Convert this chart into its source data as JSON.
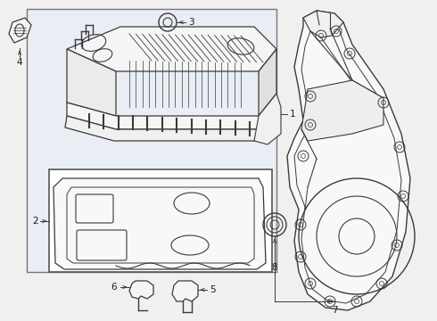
{
  "bg_color": "#f0f0f0",
  "main_box_bg": "#e8eef4",
  "inner_box_bg": "#ffffff",
  "line_color": "#3a3a3a",
  "label_color": "#1a1a1a",
  "fig_w": 4.9,
  "fig_h": 3.6,
  "dpi": 100,
  "label_fontsize": 7.5
}
